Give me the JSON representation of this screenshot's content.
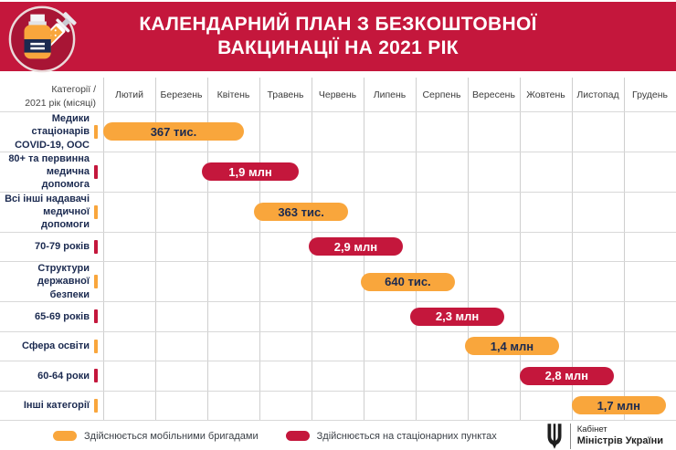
{
  "header": {
    "title_line1": "КАЛЕНДАРНИЙ ПЛАН З БЕЗКОШТОВНОЇ",
    "title_line2": "ВАКЦИНАЦІЇ НА 2021 РІК",
    "badge_icon": "vaccine-vial-and-syringe-icon"
  },
  "corner": {
    "line1": "Категорії /",
    "line2": "2021 рік (місяці)"
  },
  "colors": {
    "header_red": "#C4173C",
    "mobile_orange": "#F9A63C",
    "stationary_red": "#C4173C",
    "navy_text": "#1B2A50",
    "grid_line": "#CFCFCF"
  },
  "chart_data": {
    "type": "bar",
    "subtype": "horizontal-gantt-timeline",
    "title": "КАЛЕНДАРНИЙ ПЛАН З БЕЗКОШТОВНОЇ ВАКЦИНАЦІЇ НА 2021 РІК",
    "months": [
      "Лютий",
      "Березень",
      "Квітень",
      "Травень",
      "Червень",
      "Липень",
      "Серпень",
      "Вересень",
      "Жовтень",
      "Листопад",
      "Грудень"
    ],
    "x_axis_note_start_unit": 0,
    "rows": [
      {
        "category": "Медики стаціонарів\nCOVID-19, ООС",
        "value_label": "367 тис.",
        "group": "mobile",
        "start": 0.0,
        "end": 2.7
      },
      {
        "category": "80+ та первинна\nмедична допомога",
        "value_label": "1,9 млн",
        "group": "stationary",
        "start": 1.9,
        "end": 3.75
      },
      {
        "category": "Всі інші надавачі\nмедичної допомоги",
        "value_label": "363 тис.",
        "group": "mobile",
        "start": 2.9,
        "end": 4.7
      },
      {
        "category": "70-79 років",
        "value_label": "2,9 млн",
        "group": "stationary",
        "start": 3.95,
        "end": 5.75
      },
      {
        "category": "Структури\nдержавної безпеки",
        "value_label": "640 тис.",
        "group": "mobile",
        "start": 4.95,
        "end": 6.75
      },
      {
        "category": "65-69 років",
        "value_label": "2,3 млн",
        "group": "stationary",
        "start": 5.9,
        "end": 7.7
      },
      {
        "category": "Сфера освіти",
        "value_label": "1,4 млн",
        "group": "mobile",
        "start": 6.95,
        "end": 8.75
      },
      {
        "category": "60-64 роки",
        "value_label": "2,8 млн",
        "group": "stationary",
        "start": 8.0,
        "end": 9.8
      },
      {
        "category": "Інші категорії",
        "value_label": "1,7 млн",
        "group": "mobile",
        "start": 9.0,
        "end": 10.8
      }
    ]
  },
  "legend": [
    {
      "key": "mobile",
      "label": "Здійснюється мобільними бригадами",
      "color": "#F9A63C"
    },
    {
      "key": "stationary",
      "label": "Здійснюється на стаціонарних пунктах",
      "color": "#C4173C"
    }
  ],
  "footer": {
    "org_line1": "Кабінет",
    "org_line2": "Міністрів України",
    "logo_icon": "ukraine-trident-icon"
  }
}
